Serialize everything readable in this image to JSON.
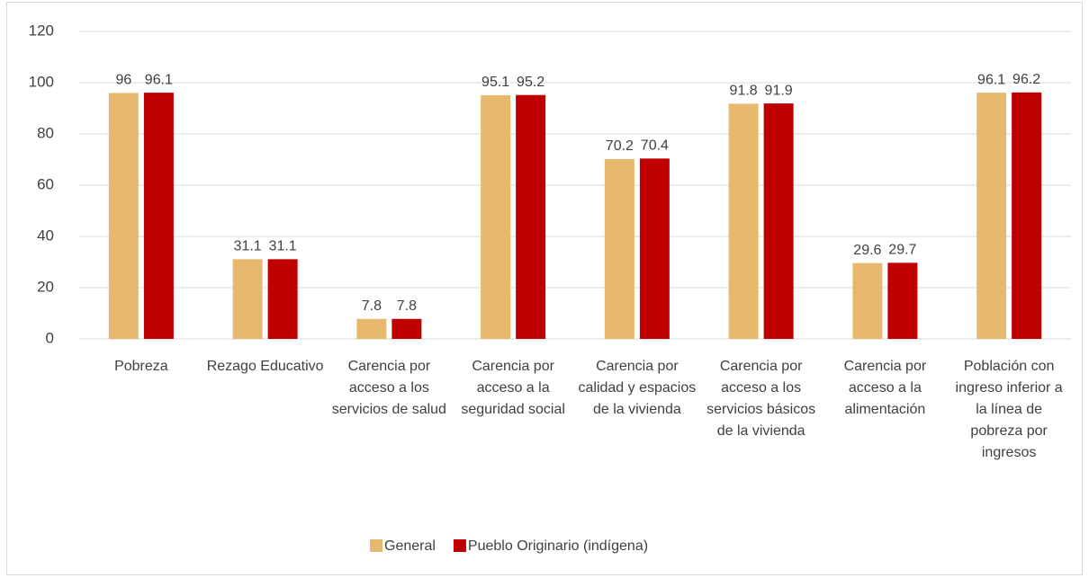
{
  "chart_data": {
    "type": "bar",
    "categories": [
      "Pobreza",
      "Rezago Educativo",
      "Carencia por acceso a los servicios de salud",
      "Carencia por acceso a la seguridad social",
      "Carencia por calidad y espacios de la vivienda",
      "Carencia por acceso a los servicios básicos de la vivienda",
      "Carencia por acceso a la alimentación",
      "Población con ingreso inferior a la línea de pobreza por ingresos"
    ],
    "series": [
      {
        "name": "General",
        "color": "#e6b96f",
        "values": [
          96,
          31.1,
          7.8,
          95.1,
          70.2,
          91.8,
          29.6,
          96.1
        ]
      },
      {
        "name": "Pueblo Originario (indígena)",
        "color": "#c00000",
        "values": [
          96.1,
          31.1,
          7.8,
          95.2,
          70.4,
          91.9,
          29.7,
          96.2
        ]
      }
    ],
    "ylim": [
      0,
      120
    ],
    "yticks": [
      0,
      20,
      40,
      60,
      80,
      100,
      120
    ],
    "grid": true,
    "legend": "bottom"
  }
}
